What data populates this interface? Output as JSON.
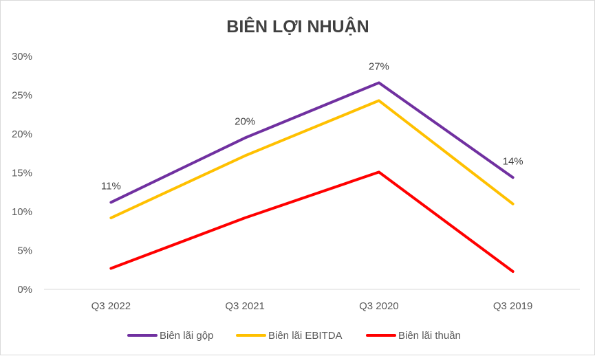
{
  "chart_data": {
    "type": "line",
    "title": "BIÊN LỢI NHUẬN",
    "categories": [
      "Q3 2022",
      "Q3 2021",
      "Q3 2020",
      "Q3 2019"
    ],
    "ylim": [
      0,
      30
    ],
    "yticks": [
      "0%",
      "5%",
      "10%",
      "15%",
      "20%",
      "25%",
      "30%"
    ],
    "grid": false,
    "legend_position": "bottom",
    "series": [
      {
        "name": "Biên lãi gộp",
        "color": "#7030a0",
        "values": [
          11.2,
          19.5,
          26.6,
          14.4
        ],
        "data_labels": [
          "11%",
          "20%",
          "27%",
          "14%"
        ]
      },
      {
        "name": "Biên lãi EBITDA",
        "color": "#ffc000",
        "values": [
          9.2,
          17.2,
          24.3,
          11.0
        ]
      },
      {
        "name": "Biên lãi thuần",
        "color": "#ff0000",
        "values": [
          2.7,
          9.2,
          15.1,
          2.3
        ]
      }
    ]
  }
}
